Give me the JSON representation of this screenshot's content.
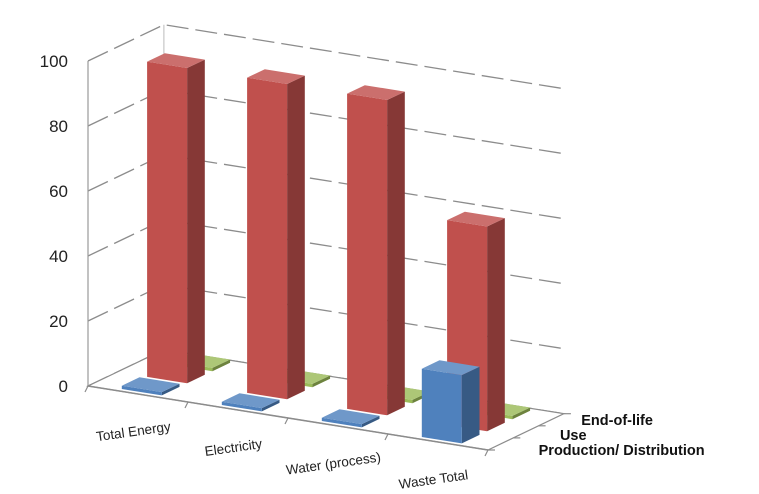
{
  "chart_data": {
    "type": "bar",
    "style": "3d-column",
    "categories": [
      "Total Energy",
      "Electricity",
      "Water (process)",
      "Waste Total"
    ],
    "series": [
      {
        "name": "Production/ Distribution",
        "color": "#4f81bd",
        "values": [
          1,
          1,
          1,
          21
        ]
      },
      {
        "name": "Use",
        "color": "#c0504d",
        "values": [
          97,
          97,
          97,
          63
        ]
      },
      {
        "name": "End-of-life",
        "color": "#9bbb59",
        "values": [
          1,
          1,
          1,
          1
        ]
      }
    ],
    "ylim": [
      0,
      100
    ],
    "yticks": [
      "0",
      "20",
      "40",
      "60",
      "80",
      "100"
    ],
    "grid": true,
    "title": "",
    "xlabel": "",
    "ylabel": ""
  }
}
